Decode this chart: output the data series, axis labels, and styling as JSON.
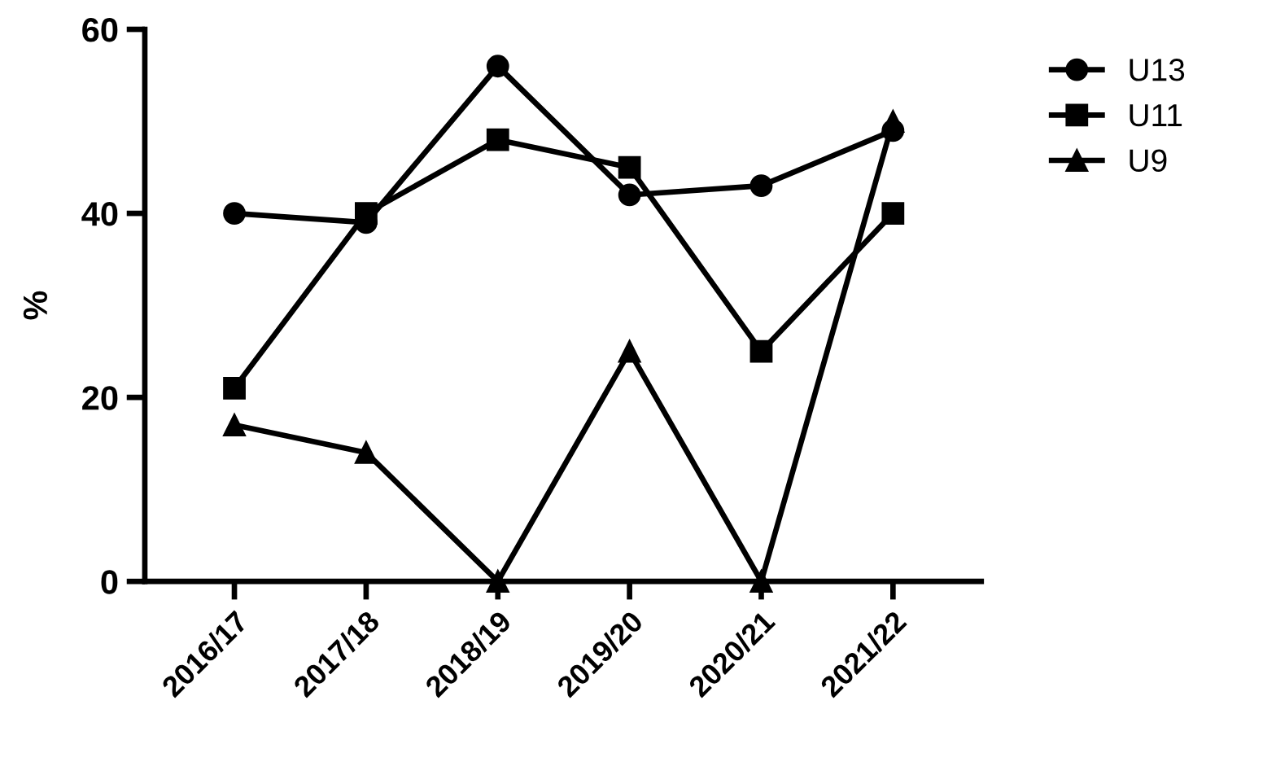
{
  "chart_data": {
    "type": "line",
    "ylabel": "%",
    "categories": [
      "2016/17",
      "2017/18",
      "2018/19",
      "2019/20",
      "2020/21",
      "2021/22"
    ],
    "series": [
      {
        "name": "U13",
        "color": "#000000",
        "marker": "circle",
        "values": [
          40,
          39,
          56,
          42,
          43,
          49
        ]
      },
      {
        "name": "U11",
        "color": "#000000",
        "marker": "square",
        "values": [
          21,
          40,
          48,
          45,
          25,
          40
        ]
      },
      {
        "name": "U9",
        "color": "#000000",
        "marker": "triangle",
        "values": [
          17,
          14,
          0,
          25,
          0,
          50
        ]
      }
    ],
    "ylim": [
      0,
      60
    ],
    "yticks": [
      0,
      20,
      40,
      60
    ],
    "grid": false,
    "legend": "top right",
    "line_style": "solid"
  }
}
